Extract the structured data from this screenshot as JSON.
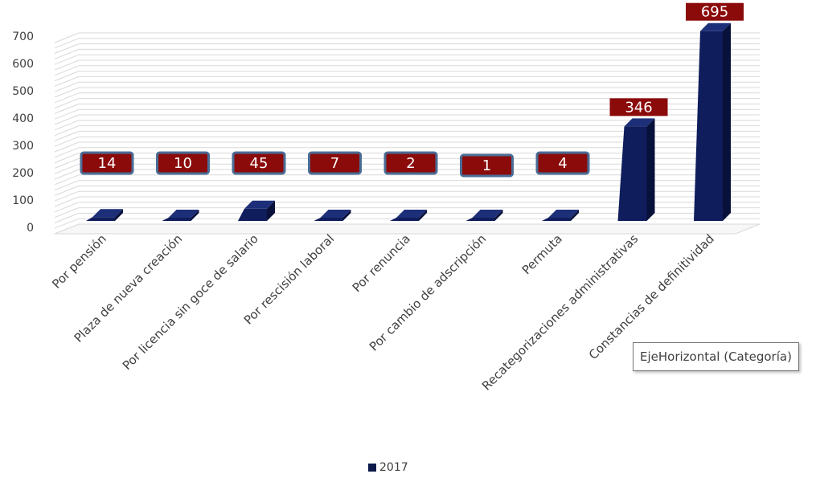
{
  "chart_data": {
    "type": "bar",
    "categories": [
      "Por pensión",
      "Plaza de nueva creación",
      "Por licencia sin goce de salario",
      "Por rescisión laboral",
      "Por renuncia",
      "Por cambio de adscripción",
      "Permuta",
      "Recategorizaciones administrativas",
      "Constancias de definitividad"
    ],
    "series": [
      {
        "name": "2017",
        "values": [
          14,
          10,
          45,
          7,
          2,
          1,
          4,
          346,
          695
        ]
      }
    ],
    "data_labels": [
      "14",
      "10",
      "45",
      "7",
      "2",
      "1",
      "4",
      "346",
      "695"
    ],
    "yticks": [
      "0",
      "100",
      "200",
      "300",
      "400",
      "500",
      "600",
      "700"
    ],
    "ylim": [
      0,
      700
    ],
    "grid": true,
    "legend_position": "bottom",
    "three_d": true,
    "colors": {
      "bar_front": "#0f1d5c",
      "bar_side": "#08113a",
      "bar_top": "#1d2f78",
      "label_bg": "#8b0a0a",
      "label_border": "#4a6d96",
      "label_text": "#ffffff",
      "grid": "#d9d9d9",
      "axis_text": "#404040"
    }
  },
  "tooltip": {
    "text": "EjeHorizontal (Categoría)"
  },
  "legend": {
    "label": "2017"
  }
}
